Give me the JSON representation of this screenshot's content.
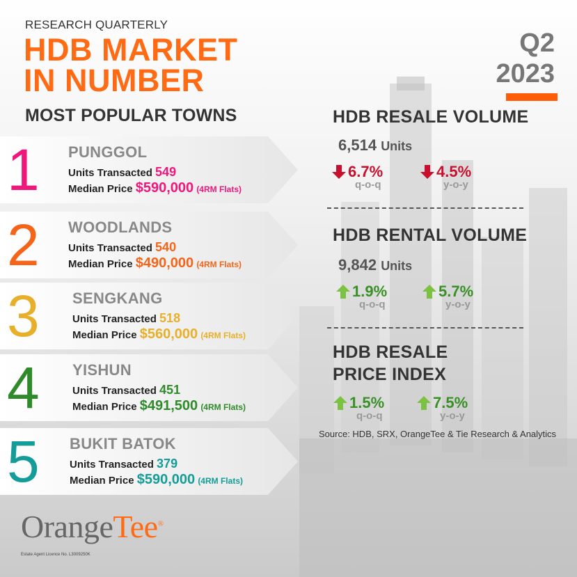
{
  "header": {
    "kicker": "RESEARCH QUARTERLY",
    "title_line1": "HDB MARKET",
    "title_line2": "IN NUMBER",
    "quarter_line1": "Q2",
    "quarter_line2": "2023"
  },
  "popular": {
    "title": "MOST POPULAR TOWNS",
    "units_label": "Units Transacted",
    "price_label": "Median Price",
    "towns": [
      {
        "rank": "1",
        "name": "PUNGGOL",
        "units": "549",
        "price": "$590,000",
        "note": "(4RM Flats)",
        "color": "#f0177c"
      },
      {
        "rank": "2",
        "name": "WOODLANDS",
        "units": "540",
        "price": "$490,000",
        "note": "(4RM Flats)",
        "color": "#f4651a"
      },
      {
        "rank": "3",
        "name": "SENGKANG",
        "units": "518",
        "price": "$560,000",
        "note": "(4RM Flats)",
        "color": "#e8b02a"
      },
      {
        "rank": "4",
        "name": "YISHUN",
        "units": "451",
        "price": "$491,500",
        "note": "(4RM Flats)",
        "color": "#2f8a2a"
      },
      {
        "rank": "5",
        "name": "BUKIT BATOK",
        "units": "379",
        "price": "$590,000",
        "note": "(4RM Flats)",
        "color": "#139c98"
      }
    ]
  },
  "resale_volume": {
    "title": "HDB RESALE VOLUME",
    "value": "6,514",
    "unit": "Units",
    "qoq": "6.7%",
    "qoq_label": "q-o-q",
    "qoq_dir": "down",
    "yoy": "4.5%",
    "yoy_label": "y-o-y",
    "yoy_dir": "down"
  },
  "rental_volume": {
    "title": "HDB RENTAL VOLUME",
    "value": "9,842",
    "unit": "Units",
    "qoq": "1.9%",
    "qoq_label": "q-o-q",
    "qoq_dir": "up",
    "yoy": "5.7%",
    "yoy_label": "y-o-y",
    "yoy_dir": "up"
  },
  "price_index": {
    "title_line1": "HDB RESALE",
    "title_line2": "PRICE INDEX",
    "qoq": "1.5%",
    "qoq_label": "q-o-q",
    "qoq_dir": "up",
    "yoy": "7.5%",
    "yoy_label": "y-o-y",
    "yoy_dir": "up"
  },
  "source": "Source: HDB, SRX, OrangeTee & Tie Research & Analytics",
  "logo": {
    "part1": "Orange",
    "part2": "Tee",
    "reg": "®",
    "licence": "Estate Agent Licence No. L3009250K"
  },
  "colors": {
    "orange": "#ff6b14",
    "down": "#c8102e",
    "up": "#3a8f27",
    "up_arrow": "#7cc242",
    "down_arrow": "#c8102e"
  }
}
